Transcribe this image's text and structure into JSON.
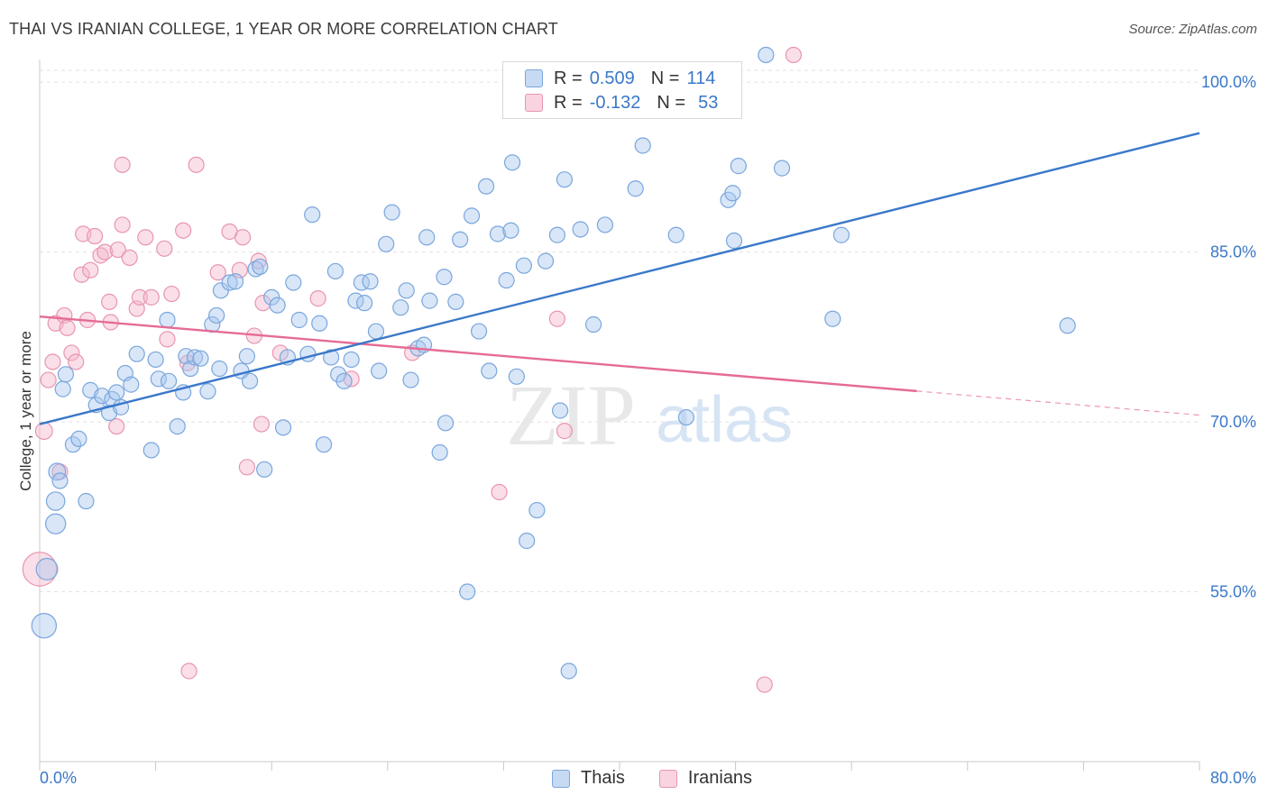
{
  "title": "THAI VS IRANIAN COLLEGE, 1 YEAR OR MORE CORRELATION CHART",
  "source": "Source: ZipAtlas.com",
  "watermark": {
    "zip": "ZIP",
    "atlas": "atlas"
  },
  "legend": {
    "r_label": "R =",
    "n_label": "N =",
    "thai": {
      "r": "0.509",
      "n": "114"
    },
    "iranian": {
      "r": "-0.132",
      "n": "53"
    }
  },
  "bottom_legend": {
    "thai": "Thais",
    "iranian": "Iranians"
  },
  "colors": {
    "thai_fill": "#a9c8ef",
    "thai_stroke": "#7aa6dc",
    "thai_line": "#3a78c9",
    "iranian_fill": "#f5b9cb",
    "iranian_stroke": "#e995b0",
    "iranian_line": "#e56b95",
    "axis_text": "#3a78c9",
    "grid": "#e2e2e2"
  },
  "chart_data": {
    "type": "scatter",
    "title": "THAI VS IRANIAN COLLEGE, 1 YEAR OR MORE CORRELATION CHART",
    "xlabel": "",
    "ylabel": "College, 1 year or more",
    "xlim": [
      0,
      80
    ],
    "ylim": [
      40,
      102
    ],
    "x_tick_labels": [
      "0.0%",
      "80.0%"
    ],
    "y_ticks": [
      55,
      70,
      85,
      100
    ],
    "y_tick_labels": [
      "55.0%",
      "70.0%",
      "85.0%",
      "100.0%"
    ],
    "grid": true,
    "legend_position": "top-center",
    "series": [
      {
        "name": "Thais",
        "r": 0.509,
        "n": 114,
        "trend": {
          "x": [
            0,
            80
          ],
          "y": [
            69.8,
            95.5
          ],
          "solid_until": 80
        },
        "points": [
          [
            0.3,
            52.0,
            1.6
          ],
          [
            0.5,
            57.0,
            1.4
          ],
          [
            1.1,
            61.0,
            1.3
          ],
          [
            1.1,
            63.0,
            1.2
          ],
          [
            1.2,
            65.6,
            1.1
          ],
          [
            1.6,
            72.9,
            1.0
          ],
          [
            1.8,
            74.2,
            1.0
          ],
          [
            1.4,
            64.8,
            1.0
          ],
          [
            2.3,
            68.0,
            1.0
          ],
          [
            2.7,
            68.5,
            1.0
          ],
          [
            3.2,
            63.0,
            1.0
          ],
          [
            3.5,
            72.8,
            1.0
          ],
          [
            3.9,
            71.5,
            1.0
          ],
          [
            4.3,
            72.3,
            1.0
          ],
          [
            4.8,
            70.8,
            1.0
          ],
          [
            5.0,
            72.0,
            1.0
          ],
          [
            5.3,
            72.6,
            1.0
          ],
          [
            5.6,
            71.3,
            1.0
          ],
          [
            5.9,
            74.3,
            1.0
          ],
          [
            6.3,
            73.3,
            1.0
          ],
          [
            6.7,
            76.0,
            1.0
          ],
          [
            7.7,
            67.5,
            1.0
          ],
          [
            8.0,
            75.5,
            1.0
          ],
          [
            8.2,
            73.8,
            1.0
          ],
          [
            8.8,
            79.0,
            1.0
          ],
          [
            8.9,
            73.6,
            1.0
          ],
          [
            9.5,
            69.6,
            1.0
          ],
          [
            9.9,
            72.6,
            1.0
          ],
          [
            10.1,
            75.8,
            1.0
          ],
          [
            10.4,
            74.7,
            1.0
          ],
          [
            10.7,
            75.7,
            1.0
          ],
          [
            11.1,
            75.6,
            1.0
          ],
          [
            11.6,
            72.7,
            1.0
          ],
          [
            11.9,
            78.6,
            1.0
          ],
          [
            12.2,
            79.4,
            1.0
          ],
          [
            12.4,
            74.7,
            1.0
          ],
          [
            12.5,
            81.6,
            1.0
          ],
          [
            13.1,
            82.3,
            1.0
          ],
          [
            13.5,
            82.4,
            1.0
          ],
          [
            13.9,
            74.5,
            1.0
          ],
          [
            14.3,
            75.8,
            1.0
          ],
          [
            14.5,
            73.6,
            1.0
          ],
          [
            14.9,
            83.5,
            1.0
          ],
          [
            15.2,
            83.7,
            1.0
          ],
          [
            15.5,
            65.8,
            1.0
          ],
          [
            16.0,
            81.0,
            1.0
          ],
          [
            16.4,
            80.3,
            1.0
          ],
          [
            16.8,
            69.5,
            1.0
          ],
          [
            17.1,
            75.7,
            1.0
          ],
          [
            17.5,
            82.3,
            1.0
          ],
          [
            17.9,
            79.0,
            1.0
          ],
          [
            18.5,
            76.0,
            1.0
          ],
          [
            18.8,
            88.3,
            1.0
          ],
          [
            19.3,
            78.7,
            1.0
          ],
          [
            19.6,
            68.0,
            1.0
          ],
          [
            20.1,
            75.7,
            1.0
          ],
          [
            20.4,
            83.3,
            1.0
          ],
          [
            20.6,
            74.2,
            1.0
          ],
          [
            21.0,
            73.6,
            1.0
          ],
          [
            21.5,
            75.5,
            1.0
          ],
          [
            21.8,
            80.7,
            1.0
          ],
          [
            22.2,
            82.3,
            1.0
          ],
          [
            22.4,
            80.5,
            1.0
          ],
          [
            22.8,
            82.4,
            1.0
          ],
          [
            23.2,
            78.0,
            1.0
          ],
          [
            23.4,
            74.5,
            1.0
          ],
          [
            23.9,
            85.7,
            1.0
          ],
          [
            24.3,
            88.5,
            1.0
          ],
          [
            24.9,
            80.1,
            1.0
          ],
          [
            25.3,
            81.6,
            1.0
          ],
          [
            25.6,
            73.7,
            1.0
          ],
          [
            26.1,
            76.5,
            1.0
          ],
          [
            26.5,
            76.8,
            1.0
          ],
          [
            26.7,
            86.3,
            1.0
          ],
          [
            26.9,
            80.7,
            1.0
          ],
          [
            27.6,
            67.3,
            1.0
          ],
          [
            27.9,
            82.8,
            1.0
          ],
          [
            28.0,
            69.9,
            1.0
          ],
          [
            28.7,
            80.6,
            1.0
          ],
          [
            29.0,
            86.1,
            1.0
          ],
          [
            29.5,
            55.0,
            1.0
          ],
          [
            29.8,
            88.2,
            1.0
          ],
          [
            30.3,
            78.0,
            1.0
          ],
          [
            30.8,
            90.8,
            1.0
          ],
          [
            31.0,
            74.5,
            1.0
          ],
          [
            31.6,
            86.6,
            1.0
          ],
          [
            32.2,
            82.5,
            1.0
          ],
          [
            32.5,
            86.9,
            1.0
          ],
          [
            32.6,
            92.9,
            1.0
          ],
          [
            32.9,
            74.0,
            1.0
          ],
          [
            33.4,
            83.8,
            1.0
          ],
          [
            33.6,
            59.5,
            1.0
          ],
          [
            34.3,
            62.2,
            1.0
          ],
          [
            34.9,
            84.2,
            1.0
          ],
          [
            35.7,
            86.5,
            1.0
          ],
          [
            35.9,
            71.0,
            1.0
          ],
          [
            36.2,
            91.4,
            1.0
          ],
          [
            36.5,
            48.0,
            1.0
          ],
          [
            37.3,
            87.0,
            1.0
          ],
          [
            38.2,
            78.6,
            1.0
          ],
          [
            39.0,
            87.4,
            1.0
          ],
          [
            41.6,
            94.4,
            1.0
          ],
          [
            41.1,
            90.6,
            1.0
          ],
          [
            43.9,
            86.5,
            1.0
          ],
          [
            44.6,
            70.4,
            1.0
          ],
          [
            47.5,
            89.6,
            1.0
          ],
          [
            47.8,
            90.2,
            1.0
          ],
          [
            47.9,
            86.0,
            1.0
          ],
          [
            48.2,
            92.6,
            1.0
          ],
          [
            50.1,
            102.4,
            1.0
          ],
          [
            51.2,
            92.4,
            1.0
          ],
          [
            54.7,
            79.1,
            1.0
          ],
          [
            55.3,
            86.5,
            1.0
          ],
          [
            70.9,
            78.5,
            1.0
          ]
        ]
      },
      {
        "name": "Iranians",
        "r": -0.132,
        "n": 53,
        "trend": {
          "x": [
            0,
            80
          ],
          "y": [
            79.3,
            70.6
          ],
          "solid_until": 60.5
        },
        "points": [
          [
            0.0,
            57.0,
            2.2
          ],
          [
            0.3,
            69.2,
            1.1
          ],
          [
            0.6,
            73.7,
            1.0
          ],
          [
            0.9,
            75.3,
            1.0
          ],
          [
            1.1,
            78.7,
            1.0
          ],
          [
            1.4,
            65.6,
            1.0
          ],
          [
            1.7,
            79.4,
            1.0
          ],
          [
            1.9,
            78.3,
            1.0
          ],
          [
            2.2,
            76.1,
            1.0
          ],
          [
            2.5,
            75.3,
            1.0
          ],
          [
            2.9,
            83.0,
            1.0
          ],
          [
            3.0,
            86.6,
            1.0
          ],
          [
            3.3,
            79.0,
            1.0
          ],
          [
            3.5,
            83.4,
            1.0
          ],
          [
            3.8,
            86.4,
            1.0
          ],
          [
            4.2,
            84.7,
            1.0
          ],
          [
            4.5,
            85.0,
            1.0
          ],
          [
            4.8,
            80.6,
            1.0
          ],
          [
            4.9,
            78.8,
            1.0
          ],
          [
            5.3,
            69.6,
            1.0
          ],
          [
            5.4,
            85.2,
            1.0
          ],
          [
            5.7,
            87.4,
            1.0
          ],
          [
            5.7,
            92.7,
            1.0
          ],
          [
            6.2,
            84.5,
            1.0
          ],
          [
            6.7,
            80.0,
            1.0
          ],
          [
            6.9,
            81.0,
            1.0
          ],
          [
            7.3,
            86.3,
            1.0
          ],
          [
            7.7,
            81.0,
            1.0
          ],
          [
            8.6,
            85.3,
            1.0
          ],
          [
            8.8,
            77.3,
            1.0
          ],
          [
            9.1,
            81.3,
            1.0
          ],
          [
            9.9,
            86.9,
            1.0
          ],
          [
            10.2,
            75.2,
            1.0
          ],
          [
            10.3,
            48.0,
            1.0
          ],
          [
            10.8,
            92.7,
            1.0
          ],
          [
            12.3,
            83.2,
            1.0
          ],
          [
            13.1,
            86.8,
            1.0
          ],
          [
            13.8,
            83.4,
            1.0
          ],
          [
            14.0,
            86.3,
            1.0
          ],
          [
            14.3,
            66.0,
            1.0
          ],
          [
            14.8,
            77.6,
            1.0
          ],
          [
            15.1,
            84.2,
            1.0
          ],
          [
            15.3,
            69.8,
            1.0
          ],
          [
            15.4,
            80.5,
            1.0
          ],
          [
            16.6,
            76.1,
            1.0
          ],
          [
            19.2,
            80.9,
            1.0
          ],
          [
            21.5,
            73.8,
            1.0
          ],
          [
            25.7,
            76.1,
            1.0
          ],
          [
            31.7,
            63.8,
            1.0
          ],
          [
            35.7,
            79.1,
            1.0
          ],
          [
            36.2,
            69.2,
            1.0
          ],
          [
            50.0,
            46.8,
            1.0
          ],
          [
            52.0,
            102.4,
            1.0
          ]
        ]
      }
    ]
  },
  "axis": {
    "ylabel": "College, 1 year or more",
    "x_left": "0.0%",
    "x_right": "80.0%"
  }
}
